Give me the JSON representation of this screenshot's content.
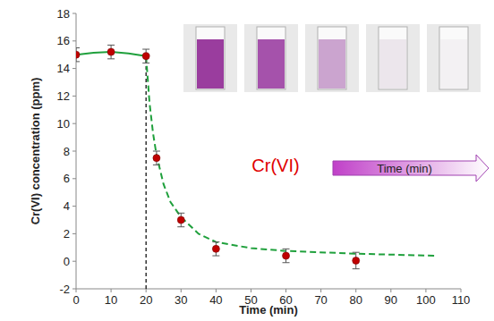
{
  "chart_data": {
    "type": "line",
    "x_label": "Time (min)",
    "y_label": "Cr(VI) concentration (ppm)",
    "xlim": [
      0,
      110
    ],
    "ylim": [
      -2,
      18
    ],
    "xticks": [
      0,
      10,
      20,
      30,
      40,
      50,
      60,
      70,
      80,
      90,
      100,
      110
    ],
    "yticks": [
      -2,
      0,
      2,
      4,
      6,
      8,
      10,
      12,
      14,
      16,
      18
    ],
    "grid": false,
    "annotations": [
      "Cr(VI)",
      "Time (min)"
    ],
    "reference_lines": [
      {
        "x": 20,
        "color": "#000000",
        "line_style": "dashed"
      }
    ],
    "series": [
      {
        "type": "scatter",
        "color": "#c00000",
        "marker": "circle",
        "x": [
          0,
          10,
          20,
          23,
          30,
          40,
          60,
          80
        ],
        "values": [
          15.0,
          15.2,
          14.9,
          7.5,
          3.0,
          0.9,
          0.4,
          0.05
        ],
        "errors": [
          0.5,
          0.5,
          0.5,
          0.5,
          0.5,
          0.5,
          0.5,
          0.6
        ]
      },
      {
        "type": "line",
        "color": "#1fa03c",
        "line_style": "solid",
        "x": [
          0,
          5,
          10,
          15,
          20
        ],
        "values": [
          15.0,
          15.15,
          15.2,
          15.1,
          14.9
        ]
      },
      {
        "type": "line",
        "color": "#1fa03c",
        "line_style": "dashed",
        "x": [
          20,
          21,
          22,
          23,
          25,
          27,
          30,
          35,
          40,
          50,
          60,
          80,
          103
        ],
        "values": [
          14.9,
          11.5,
          9.3,
          7.7,
          5.6,
          4.3,
          3.2,
          2.0,
          1.4,
          0.95,
          0.75,
          0.55,
          0.4
        ]
      }
    ]
  }
}
